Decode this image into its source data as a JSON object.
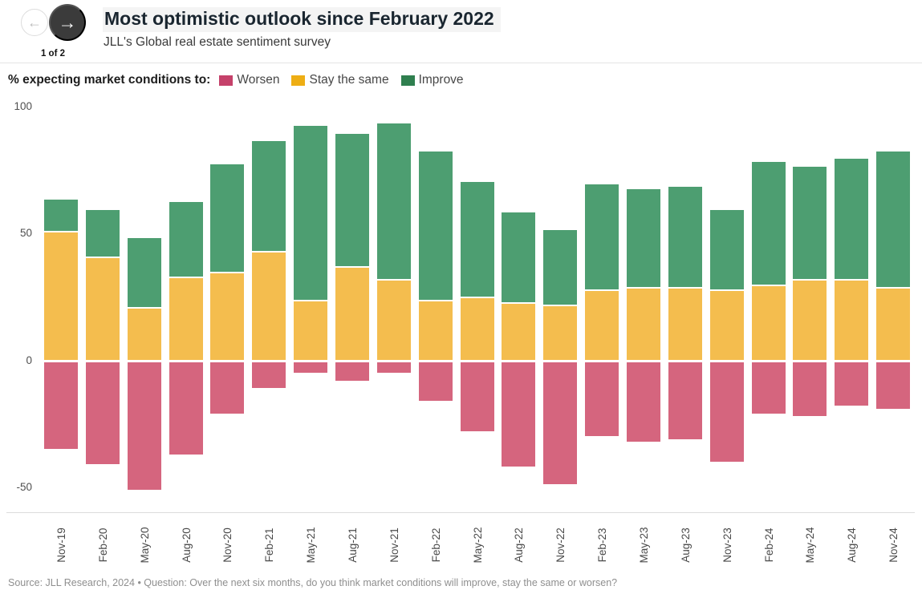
{
  "nav": {
    "prev_icon": "←",
    "next_icon": "→",
    "count_label": "1 of 2"
  },
  "header": {
    "title": "Most optimistic outlook since February 2022",
    "subtitle": "JLL's Global real estate sentiment survey"
  },
  "legend": {
    "prefix": "% expecting market conditions to:"
  },
  "chart_data": {
    "type": "bar",
    "stacked": true,
    "title": "Most optimistic outlook since February 2022",
    "subtitle": "JLL's Global real estate sentiment survey",
    "xlabel": "",
    "ylabel": "% expecting market conditions to",
    "ylim": [
      -60,
      100
    ],
    "yticks": [
      100,
      50,
      0,
      -50
    ],
    "grid": false,
    "legend_position": "top",
    "categories": [
      "Nov-19",
      "Feb-20",
      "May-20",
      "Aug-20",
      "Nov-20",
      "Feb-21",
      "May-21",
      "Aug-21",
      "Nov-21",
      "Feb-22",
      "May-22",
      "Aug-22",
      "Nov-22",
      "Feb-23",
      "May-23",
      "Aug-23",
      "Nov-23",
      "Feb-24",
      "May-24",
      "Aug-24",
      "Nov-24"
    ],
    "series": [
      {
        "name": "Worsen",
        "bar_color": "#d5657e",
        "legend_color": "#c5416a",
        "values": [
          -35,
          -41,
          -51,
          -37,
          -21,
          -11,
          -5,
          -8,
          -5,
          -16,
          -28,
          -42,
          -49,
          -30,
          -32,
          -31,
          -40,
          -21,
          -22,
          -18,
          -19
        ]
      },
      {
        "name": "Stay the same",
        "bar_color": "#f4bd4e",
        "legend_color": "#eeae14",
        "values": [
          51,
          41,
          21,
          33,
          35,
          43,
          24,
          37,
          32,
          24,
          25,
          23,
          22,
          28,
          29,
          29,
          28,
          30,
          32,
          32,
          29
        ]
      },
      {
        "name": "Improve",
        "bar_color": "#4d9e71",
        "legend_color": "#2f7f4f",
        "values": [
          13,
          19,
          28,
          30,
          43,
          44,
          69,
          53,
          62,
          59,
          46,
          36,
          30,
          42,
          39,
          40,
          32,
          49,
          45,
          48,
          54
        ]
      }
    ]
  },
  "footer": {
    "source": "Source: JLL Research, 2024 • Question: Over the next six months, do you think market conditions will improve, stay the same or worsen?"
  }
}
